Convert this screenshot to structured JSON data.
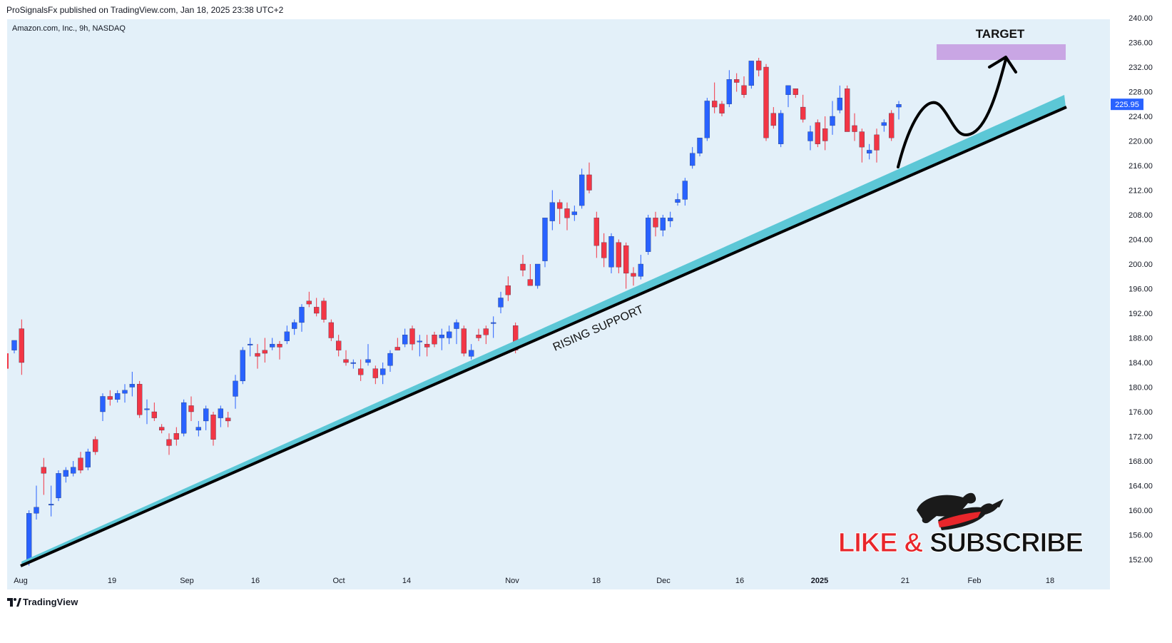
{
  "header": {
    "publisher_text": "ProSignalsFx published on TradingView.com, Jan 18, 2025 23:38 UTC+2"
  },
  "symbol_info": "Amazon.com, Inc., 9h, NASDAQ",
  "footer": {
    "brand": "TradingView"
  },
  "annotations": {
    "target_label": "TARGET",
    "support_label": "RISING SUPPORT",
    "like": "LIKE",
    "amp": " & ",
    "subscribe": "SUBSCRIBE"
  },
  "colors": {
    "background": "#e3f0f9",
    "up_candle": "#2962ff",
    "down_candle": "#f23645",
    "support_band": "#5cc7d6",
    "support_line": "#000000",
    "target_zone": "#c9a6e4",
    "price_badge": "#2962ff"
  },
  "chart_data": {
    "type": "candlestick",
    "symbol": "Amazon.com, Inc.",
    "interval": "9h",
    "exchange": "NASDAQ",
    "last_price": "225.95",
    "y_range": [
      151,
      240
    ],
    "y_ticks": [
      "152.00",
      "156.00",
      "160.00",
      "164.00",
      "168.00",
      "172.00",
      "176.00",
      "180.00",
      "184.00",
      "188.00",
      "192.00",
      "196.00",
      "200.00",
      "204.00",
      "208.00",
      "212.00",
      "216.00",
      "220.00",
      "224.00",
      "228.00",
      "232.00",
      "236.00",
      "240.00"
    ],
    "x_labels": [
      {
        "label": "Aug",
        "bold": false
      },
      {
        "label": "19",
        "bold": false
      },
      {
        "label": "Sep",
        "bold": false
      },
      {
        "label": "16",
        "bold": false
      },
      {
        "label": "Oct",
        "bold": false
      },
      {
        "label": "14",
        "bold": false
      },
      {
        "label": "Nov",
        "bold": false
      },
      {
        "label": "18",
        "bold": false
      },
      {
        "label": "Dec",
        "bold": false
      },
      {
        "label": "16",
        "bold": false
      },
      {
        "label": "2025",
        "bold": true
      },
      {
        "label": "21",
        "bold": false
      },
      {
        "label": "Feb",
        "bold": false
      },
      {
        "label": "18",
        "bold": false
      }
    ],
    "candles": [
      [
        186.0,
        187.6,
        185.5,
        187.6
      ],
      [
        189.5,
        191.0,
        182.0,
        184.0
      ],
      [
        151.5,
        160.0,
        151.0,
        159.5
      ],
      [
        159.5,
        164.0,
        158.5,
        160.5
      ],
      [
        167.0,
        168.5,
        162.5,
        166.0
      ],
      [
        161.0,
        164.0,
        159.0,
        161.0
      ],
      [
        162.0,
        166.5,
        161.5,
        166.0
      ],
      [
        165.5,
        167.0,
        164.5,
        166.5
      ],
      [
        166.0,
        168.0,
        165.5,
        167.0
      ],
      [
        168.5,
        169.5,
        166.0,
        166.5
      ],
      [
        167.0,
        170.0,
        166.5,
        169.5
      ],
      [
        171.5,
        172.0,
        169.0,
        169.5
      ],
      [
        176.0,
        179.0,
        174.5,
        178.5
      ],
      [
        178.5,
        179.5,
        177.0,
        178.0
      ],
      [
        178.0,
        179.5,
        177.5,
        179.0
      ],
      [
        179.0,
        180.5,
        177.5,
        179.5
      ],
      [
        180.0,
        182.5,
        178.5,
        180.5
      ],
      [
        180.5,
        181.0,
        175.0,
        175.5
      ],
      [
        176.5,
        178.0,
        174.0,
        176.5
      ],
      [
        176.0,
        177.5,
        174.5,
        175.0
      ],
      [
        173.5,
        174.0,
        172.5,
        173.0
      ],
      [
        171.5,
        172.5,
        169.0,
        170.5
      ],
      [
        172.5,
        173.5,
        170.5,
        171.5
      ],
      [
        172.5,
        178.0,
        172.0,
        177.5
      ],
      [
        177.0,
        178.5,
        174.5,
        176.0
      ],
      [
        173.0,
        174.5,
        172.0,
        173.5
      ],
      [
        174.5,
        177.0,
        173.0,
        176.5
      ],
      [
        175.5,
        176.0,
        170.5,
        171.5
      ],
      [
        175.0,
        177.0,
        173.5,
        176.5
      ],
      [
        175.0,
        176.0,
        173.5,
        174.5
      ],
      [
        178.5,
        182.0,
        176.5,
        181.0
      ],
      [
        181.0,
        186.5,
        180.5,
        186.0
      ],
      [
        187.0,
        188.0,
        185.0,
        187.0
      ],
      [
        185.5,
        187.0,
        183.0,
        185.0
      ],
      [
        186.0,
        188.0,
        184.0,
        185.5
      ],
      [
        186.5,
        188.0,
        186.0,
        187.0
      ],
      [
        187.0,
        187.5,
        184.5,
        186.5
      ],
      [
        187.5,
        190.0,
        187.0,
        189.0
      ],
      [
        189.5,
        191.0,
        188.5,
        190.5
      ],
      [
        190.5,
        193.5,
        189.0,
        193.0
      ],
      [
        194.0,
        195.5,
        193.0,
        193.5
      ],
      [
        193.0,
        194.5,
        191.5,
        192.0
      ],
      [
        194.0,
        194.5,
        190.5,
        191.0
      ],
      [
        190.5,
        191.0,
        187.5,
        188.0
      ],
      [
        187.5,
        188.5,
        185.0,
        186.0
      ],
      [
        184.5,
        186.0,
        183.5,
        184.0
      ],
      [
        184.0,
        184.5,
        183.0,
        184.0
      ],
      [
        183.0,
        184.5,
        181.0,
        182.0
      ],
      [
        184.0,
        187.0,
        183.5,
        184.5
      ],
      [
        183.0,
        183.5,
        180.5,
        181.5
      ],
      [
        182.0,
        184.0,
        180.5,
        183.0
      ],
      [
        183.5,
        186.0,
        182.5,
        185.5
      ],
      [
        186.5,
        188.0,
        186.0,
        186.0
      ],
      [
        187.0,
        189.5,
        186.5,
        188.5
      ],
      [
        189.5,
        190.0,
        186.0,
        187.0
      ],
      [
        187.5,
        188.5,
        185.0,
        187.5
      ],
      [
        187.0,
        188.5,
        185.0,
        186.5
      ],
      [
        188.5,
        189.0,
        186.5,
        187.0
      ],
      [
        188.0,
        189.5,
        186.0,
        188.5
      ],
      [
        188.0,
        190.0,
        187.0,
        189.0
      ],
      [
        189.5,
        191.0,
        187.0,
        190.5
      ],
      [
        189.5,
        190.0,
        185.0,
        185.5
      ],
      [
        185.0,
        187.0,
        184.5,
        186.0
      ],
      [
        188.5,
        189.5,
        187.5,
        188.0
      ],
      [
        189.5,
        190.0,
        187.0,
        188.5
      ],
      [
        190.5,
        191.5,
        188.0,
        190.5
      ],
      [
        193.0,
        195.5,
        192.0,
        194.5
      ],
      [
        196.5,
        198.0,
        194.0,
        195.0
      ],
      [
        190.0,
        190.5,
        185.5,
        186.0
      ],
      [
        200.0,
        201.5,
        198.0,
        199.0
      ],
      [
        197.5,
        200.0,
        196.5,
        196.5
      ],
      [
        196.5,
        200.0,
        196.0,
        200.0
      ],
      [
        200.5,
        207.5,
        199.5,
        207.5
      ],
      [
        207.0,
        212.0,
        205.5,
        210.0
      ],
      [
        210.0,
        210.5,
        206.5,
        209.0
      ],
      [
        209.0,
        210.0,
        205.5,
        207.5
      ],
      [
        208.0,
        209.5,
        207.0,
        208.5
      ],
      [
        209.5,
        215.5,
        209.0,
        214.5
      ],
      [
        214.5,
        216.5,
        211.5,
        212.0
      ],
      [
        207.5,
        208.5,
        201.0,
        203.0
      ],
      [
        203.5,
        205.0,
        199.5,
        201.0
      ],
      [
        199.5,
        205.0,
        198.5,
        204.5
      ],
      [
        203.5,
        204.0,
        198.5,
        199.5
      ],
      [
        203.0,
        203.5,
        196.0,
        198.5
      ],
      [
        198.5,
        199.5,
        196.5,
        198.0
      ],
      [
        198.0,
        201.5,
        197.5,
        200.0
      ],
      [
        202.0,
        208.0,
        201.5,
        207.5
      ],
      [
        207.5,
        208.5,
        204.5,
        206.0
      ],
      [
        205.5,
        208.0,
        204.5,
        207.5
      ],
      [
        207.0,
        208.5,
        206.0,
        207.5
      ],
      [
        210.0,
        211.5,
        209.5,
        210.5
      ],
      [
        210.5,
        214.0,
        209.5,
        213.5
      ],
      [
        216.0,
        219.0,
        215.5,
        218.0
      ],
      [
        218.0,
        220.5,
        217.5,
        220.5
      ],
      [
        220.5,
        227.0,
        220.0,
        226.5
      ],
      [
        226.5,
        229.5,
        224.5,
        225.5
      ],
      [
        226.0,
        226.5,
        224.0,
        224.5
      ],
      [
        226.0,
        231.5,
        225.5,
        230.0
      ],
      [
        230.0,
        231.0,
        228.0,
        229.5
      ],
      [
        229.0,
        230.5,
        227.0,
        227.5
      ],
      [
        229.0,
        233.0,
        228.5,
        233.0
      ],
      [
        233.0,
        233.5,
        230.5,
        231.5
      ],
      [
        232.0,
        232.5,
        220.0,
        220.5
      ],
      [
        224.5,
        225.5,
        222.0,
        222.5
      ],
      [
        219.5,
        225.0,
        219.0,
        224.5
      ],
      [
        227.5,
        229.0,
        225.5,
        229.0
      ],
      [
        228.5,
        228.5,
        227.0,
        227.5
      ],
      [
        225.5,
        227.5,
        223.0,
        223.5
      ],
      [
        220.0,
        222.5,
        218.5,
        221.5
      ],
      [
        223.0,
        223.5,
        219.0,
        219.5
      ],
      [
        222.0,
        224.0,
        218.5,
        220.0
      ],
      [
        222.5,
        226.5,
        221.0,
        224.0
      ],
      [
        225.0,
        229.0,
        224.5,
        227.0
      ],
      [
        228.5,
        229.0,
        221.5,
        221.5
      ],
      [
        222.5,
        224.5,
        220.0,
        221.5
      ],
      [
        221.5,
        222.0,
        216.5,
        219.0
      ],
      [
        218.0,
        219.5,
        217.0,
        218.5
      ],
      [
        221.0,
        222.0,
        216.5,
        218.5
      ],
      [
        222.5,
        223.5,
        221.5,
        223.0
      ],
      [
        224.5,
        225.0,
        220.0,
        220.5
      ],
      [
        225.5,
        226.5,
        223.5,
        225.95
      ]
    ]
  }
}
